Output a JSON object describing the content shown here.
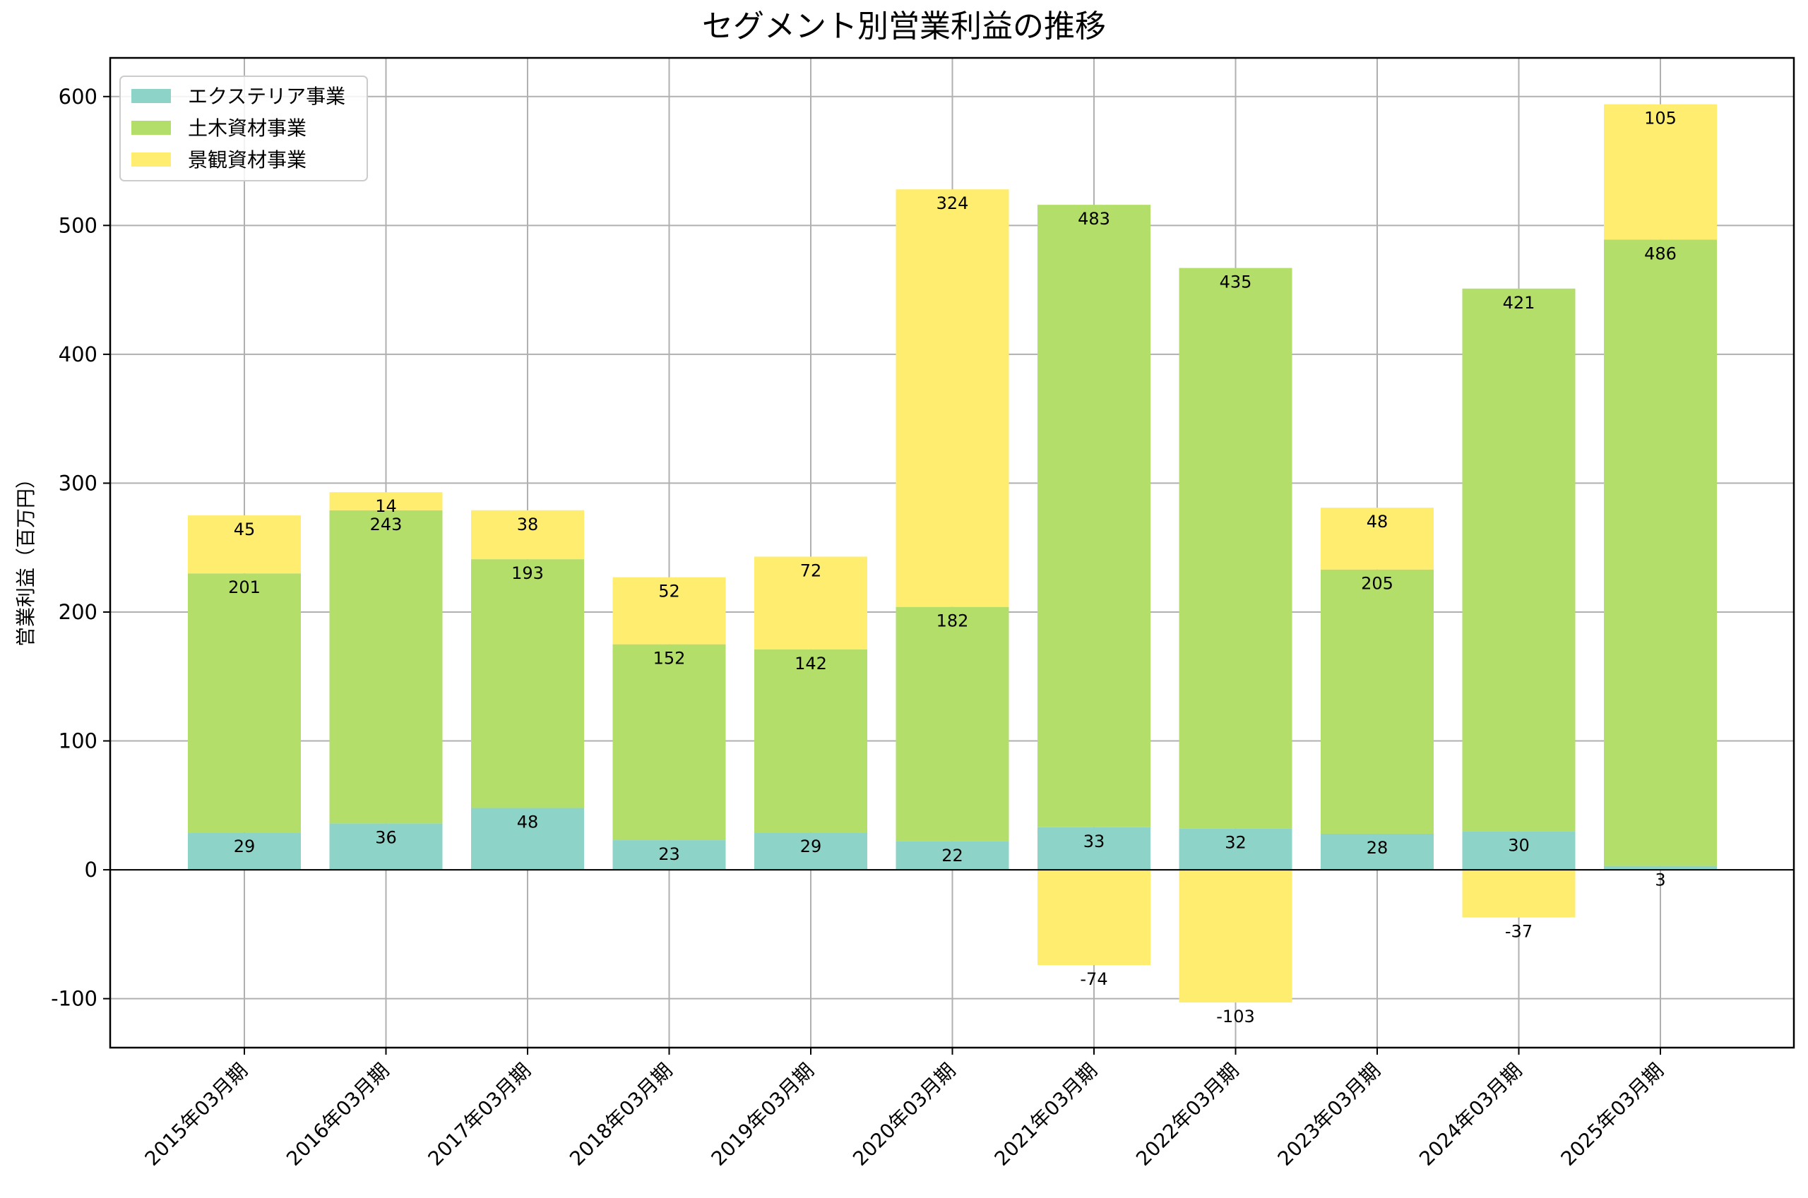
{
  "chart_data": {
    "type": "bar",
    "stacked": true,
    "title": "セグメント別営業利益の推移",
    "xlabel": "",
    "ylabel": "営業利益（百万円）",
    "ylim": [
      -138,
      630
    ],
    "yticks": [
      -100,
      0,
      100,
      200,
      300,
      400,
      500,
      600
    ],
    "grid": true,
    "legend_position": "top-left",
    "categories": [
      "2015年03月期",
      "2016年03月期",
      "2017年03月期",
      "2018年03月期",
      "2019年03月期",
      "2020年03月期",
      "2021年03月期",
      "2022年03月期",
      "2023年03月期",
      "2024年03月期",
      "2025年03月期"
    ],
    "series": [
      {
        "name": "エクステリア事業",
        "color": "#8dd3c7",
        "values": [
          29,
          36,
          48,
          23,
          29,
          22,
          33,
          32,
          28,
          30,
          3
        ]
      },
      {
        "name": "土木資材事業",
        "color": "#b3de69",
        "values": [
          201,
          243,
          193,
          152,
          142,
          182,
          483,
          435,
          205,
          421,
          486
        ]
      },
      {
        "name": "景観資材事業",
        "color": "#ffed6f",
        "values": [
          45,
          14,
          38,
          52,
          72,
          324,
          -74,
          -103,
          48,
          -37,
          105
        ]
      }
    ]
  }
}
